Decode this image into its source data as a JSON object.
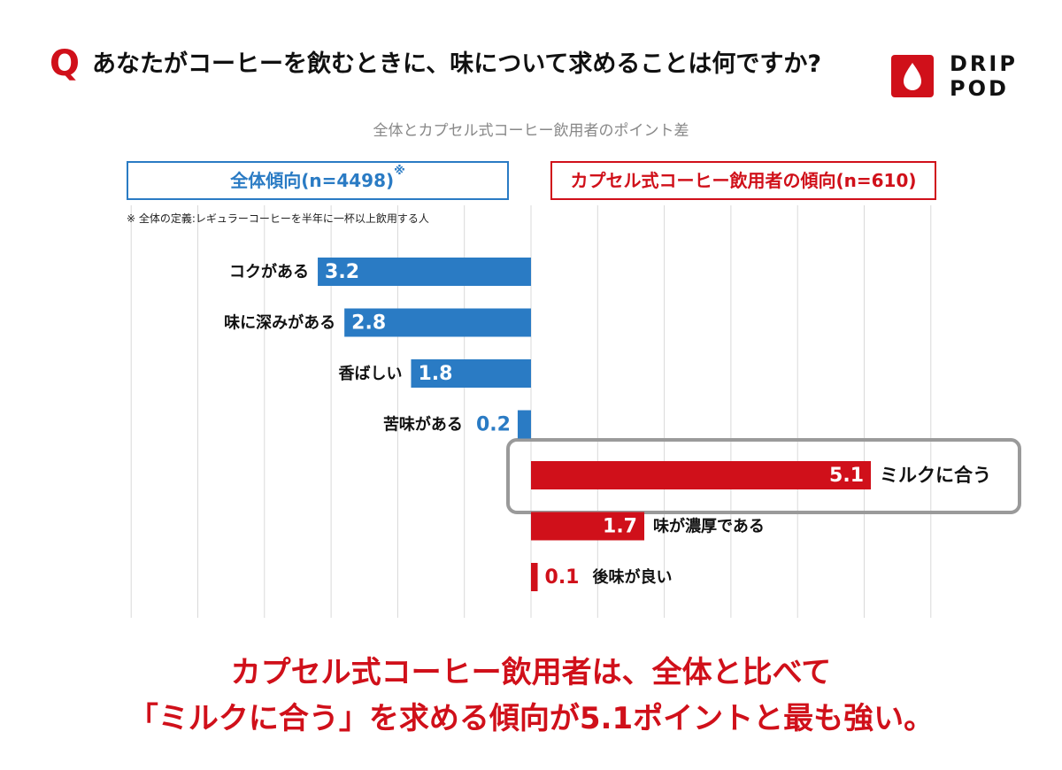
{
  "header": {
    "q_mark": "Q",
    "question": "あなたがコーヒーを飲むときに、味について求めることは何ですか?"
  },
  "logo": {
    "line1": "DRIP",
    "line2": "POD"
  },
  "subtitle": "全体とカプセル式コーヒー飲用者のポイント差",
  "legend": {
    "left_label": "全体傾向(n=4498)",
    "left_mark": "※",
    "right_label": "カプセル式コーヒー飲用者の傾向(n=610)",
    "note": "※ 全体の定義:レギュラーコーヒーを半年に一杯以上飲用する人"
  },
  "colors": {
    "overall": "#2a7bc4",
    "capsule": "#d0101a",
    "grid": "#d9d9d9",
    "highlight": "#9a9a9a"
  },
  "chart_data": {
    "type": "bar",
    "orientation": "horizontal diverging",
    "title": "全体とカプセル式コーヒー飲用者のポイント差",
    "xlabel": "",
    "ylabel": "",
    "grid": true,
    "series": [
      {
        "name": "全体傾向(n=4498)",
        "direction": "left",
        "categories": [
          "コクがある",
          "味に深みがある",
          "香ばしい",
          "苦味がある"
        ],
        "values": [
          3.2,
          2.8,
          1.8,
          0.2
        ],
        "labels": [
          "3.2",
          "2.8",
          "1.8",
          "0.2"
        ]
      },
      {
        "name": "カプセル式コーヒー飲用者の傾向(n=610)",
        "direction": "right",
        "categories": [
          "ミルクに合う",
          "味が濃厚である",
          "後味が良い"
        ],
        "values": [
          5.1,
          1.7,
          0.1
        ],
        "labels": [
          "5.1",
          "1.7",
          "0.1"
        ]
      }
    ],
    "highlighted": "ミルクに合う"
  },
  "conclusion": {
    "line1": "カプセル式コーヒー飲用者は、全体と比べて",
    "line2": "「ミルクに合う」を求める傾向が5.1ポイントと最も強い。"
  }
}
